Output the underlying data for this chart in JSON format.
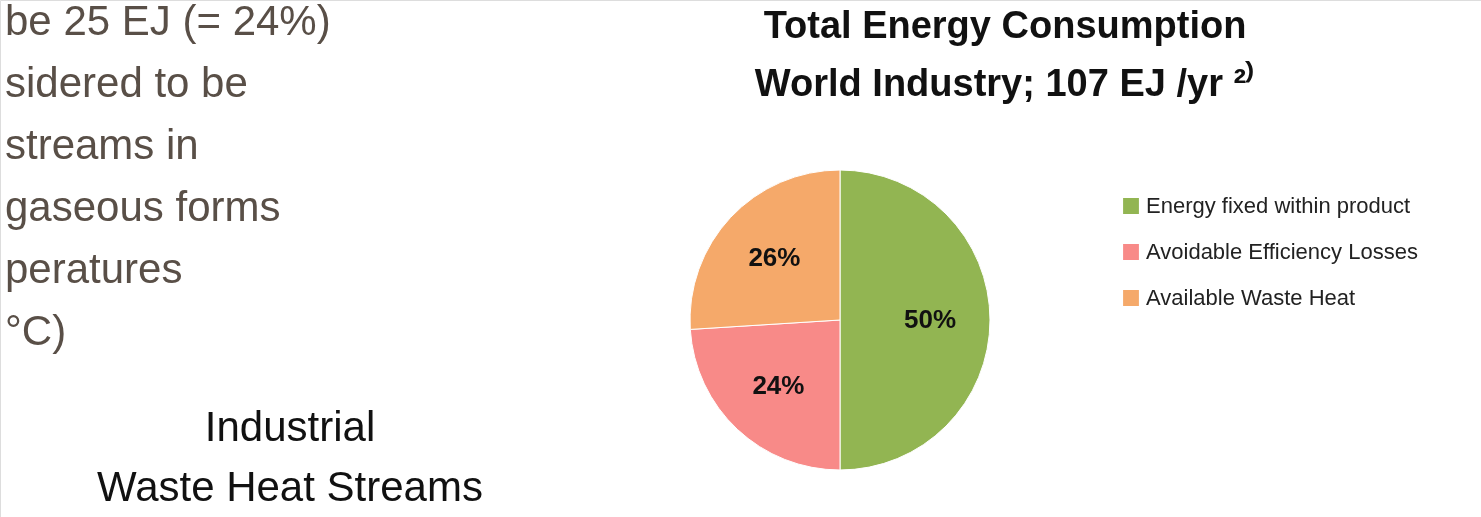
{
  "chart_data": {
    "type": "pie",
    "title": "Total Energy Consumption\nWorld Industry;  107 EJ /yr ²⁾",
    "categories": [
      "Energy fixed within product",
      "Avoidable Efficiency Losses",
      "Available Waste Heat"
    ],
    "values": [
      50,
      24,
      26
    ],
    "colors": [
      "#92b552",
      "#f88a88",
      "#f5a96a"
    ],
    "value_labels": [
      "50%",
      "24%",
      "26%"
    ],
    "legend": "right",
    "annotations": [
      "be 25 EJ (= 24%)",
      "sidered to be",
      "streams in",
      "gaseous forms",
      "peratures",
      "°C)",
      "Industrial\nWaste Heat Streams"
    ]
  }
}
